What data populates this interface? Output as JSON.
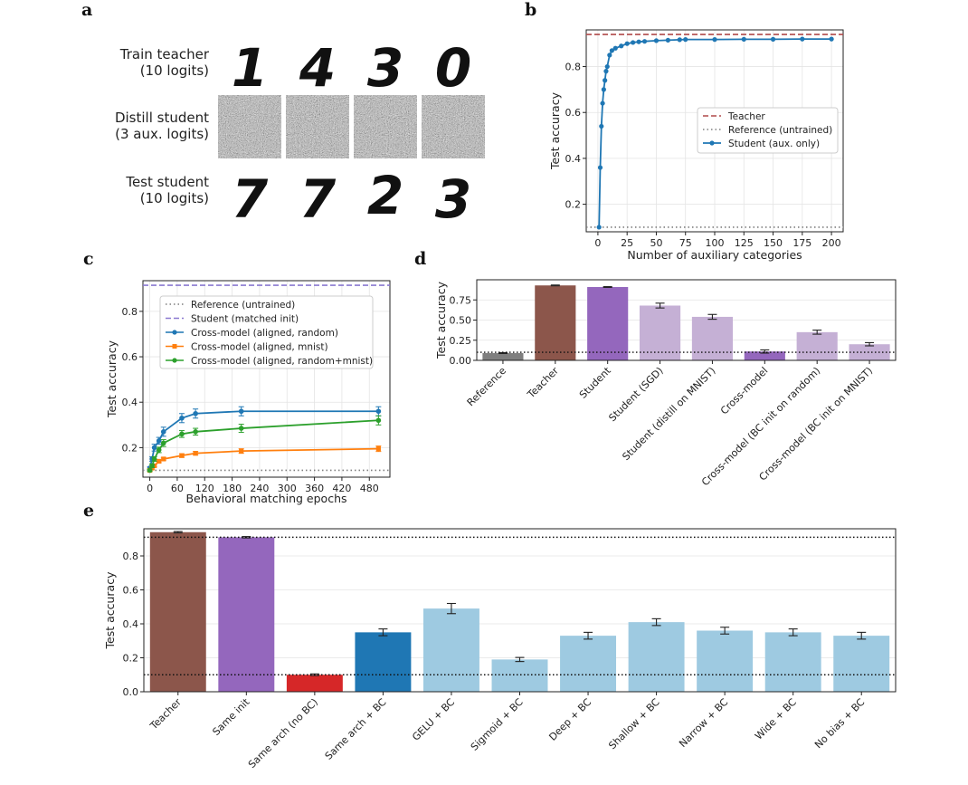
{
  "panel_labels": {
    "a": "a",
    "b": "b",
    "c": "c",
    "d": "d",
    "e": "e"
  },
  "colors": {
    "teacher": "#8c564b",
    "student": "#9467bd",
    "student_light": "#c5b0d5",
    "reference": "#7f7f7f",
    "same_arch_nobc": "#d62728",
    "same_arch_bc": "#1f77b4",
    "variants": "#9ecae1",
    "blue": "#1f77b4",
    "orange": "#ff7f0e",
    "green": "#2ca02c",
    "dashed_purple": "#8a79d0"
  },
  "panel_a": {
    "rows": [
      {
        "label_line1": "Train teacher",
        "label_line2": "(10 logits)",
        "digits": [
          "1",
          "4",
          "3",
          "0"
        ]
      },
      {
        "label_line1": "Distill student",
        "label_line2": "(3 aux. logits)",
        "digits": []
      },
      {
        "label_line1": "Test student",
        "label_line2": "(10 logits)",
        "digits": [
          "7",
          "7",
          "2",
          "3"
        ]
      }
    ]
  },
  "chart_data": [
    {
      "panel": "b",
      "type": "line",
      "xlabel": "Number of auxiliary categories",
      "ylabel": "Test accuracy",
      "xlim": [
        -10,
        210
      ],
      "ylim": [
        0.08,
        0.96
      ],
      "xticks": [
        0,
        25,
        50,
        75,
        100,
        125,
        150,
        175,
        200
      ],
      "yticks": [
        0.2,
        0.4,
        0.6,
        0.8
      ],
      "reference_lines": [
        {
          "name": "Teacher",
          "y": 0.94,
          "style": "dashed",
          "color": "#b04a4a"
        },
        {
          "name": "Reference (untrained)",
          "y": 0.1,
          "style": "dotted",
          "color": "#7f7f7f"
        }
      ],
      "series": [
        {
          "name": "Student (aux. only)",
          "x": [
            1,
            2,
            3,
            4,
            5,
            6,
            7,
            8,
            10,
            12,
            15,
            20,
            25,
            30,
            35,
            40,
            50,
            60,
            70,
            75,
            100,
            125,
            150,
            175,
            200
          ],
          "y": [
            0.1,
            0.36,
            0.54,
            0.64,
            0.7,
            0.74,
            0.78,
            0.8,
            0.85,
            0.87,
            0.88,
            0.89,
            0.9,
            0.905,
            0.908,
            0.91,
            0.913,
            0.915,
            0.917,
            0.918,
            0.918,
            0.919,
            0.919,
            0.92,
            0.92
          ],
          "err": [
            0.005,
            0.02,
            0.02,
            0.02,
            0.015,
            0.012,
            0.01,
            0.01,
            0.008,
            0.006,
            0.005,
            0.004,
            0.004,
            0.003,
            0.003,
            0.003,
            0.003,
            0.003,
            0.003,
            0.003,
            0.003,
            0.003,
            0.003,
            0.003,
            0.003
          ]
        }
      ],
      "legend": {
        "position": "center-right",
        "entries": [
          "Teacher",
          "Reference (untrained)",
          "Student (aux. only)"
        ]
      }
    },
    {
      "panel": "c",
      "type": "line",
      "xlabel": "Behavioral matching epochs",
      "ylabel": "Test accuracy",
      "xlim": [
        -15,
        525
      ],
      "ylim": [
        0.07,
        0.935
      ],
      "xticks": [
        0,
        60,
        120,
        180,
        240,
        300,
        360,
        420,
        480
      ],
      "yticks": [
        0.2,
        0.4,
        0.6,
        0.8
      ],
      "reference_lines": [
        {
          "name": "Reference (untrained)",
          "y": 0.1,
          "style": "dotted",
          "color": "#7f7f7f"
        },
        {
          "name": "Student (matched init)",
          "y": 0.915,
          "style": "dashed",
          "color": "#8a79d0"
        }
      ],
      "series": [
        {
          "name": "Cross-model (aligned, random)",
          "color": "#1f77b4",
          "x": [
            0,
            5,
            10,
            20,
            30,
            70,
            100,
            200,
            500
          ],
          "y": [
            0.11,
            0.15,
            0.2,
            0.23,
            0.27,
            0.33,
            0.35,
            0.36,
            0.36
          ],
          "err": [
            0.005,
            0.01,
            0.015,
            0.015,
            0.02,
            0.02,
            0.02,
            0.02,
            0.02
          ]
        },
        {
          "name": "Cross-model (aligned, mnist)",
          "color": "#ff7f0e",
          "x": [
            0,
            5,
            10,
            20,
            30,
            70,
            100,
            200,
            500
          ],
          "y": [
            0.1,
            0.11,
            0.12,
            0.14,
            0.15,
            0.165,
            0.175,
            0.185,
            0.195
          ],
          "err": [
            0.005,
            0.005,
            0.005,
            0.006,
            0.007,
            0.008,
            0.008,
            0.01,
            0.012
          ]
        },
        {
          "name": "Cross-model (aligned, random+mnist)",
          "color": "#2ca02c",
          "x": [
            0,
            5,
            10,
            20,
            30,
            70,
            100,
            200,
            500
          ],
          "y": [
            0.1,
            0.12,
            0.15,
            0.19,
            0.22,
            0.26,
            0.27,
            0.285,
            0.32
          ],
          "err": [
            0.005,
            0.008,
            0.01,
            0.012,
            0.015,
            0.015,
            0.015,
            0.018,
            0.02
          ]
        }
      ],
      "legend": {
        "position": "top-center",
        "entries": [
          "Reference (untrained)",
          "Student (matched init)",
          "Cross-model (aligned, random)",
          "Cross-model (aligned, mnist)",
          "Cross-model (aligned, random+mnist)"
        ]
      }
    },
    {
      "panel": "d",
      "type": "bar",
      "xlabel": "",
      "ylabel": "Test accuracy",
      "ylim": [
        0,
        1.0
      ],
      "yticks": [
        0.0,
        0.25,
        0.5,
        0.75
      ],
      "ytick_labels": [
        "0.00",
        "0.25",
        "0.50",
        "0.75"
      ],
      "reference_line": {
        "y": 0.1,
        "style": "dotted"
      },
      "categories": [
        "Reference",
        "Teacher",
        "Student",
        "Student (SGD)",
        "Student (distill on MNIST)",
        "Cross-model",
        "Cross-model (BC init on random)",
        "Cross-model (BC init on MNIST)"
      ],
      "values": [
        0.09,
        0.93,
        0.91,
        0.68,
        0.54,
        0.11,
        0.35,
        0.2
      ],
      "errors": [
        0.005,
        0.005,
        0.005,
        0.03,
        0.03,
        0.02,
        0.025,
        0.02
      ],
      "bar_colors": [
        "#7f7f7f",
        "#8c564b",
        "#9467bd",
        "#c5b0d5",
        "#c5b0d5",
        "#9467bd",
        "#c5b0d5",
        "#c5b0d5"
      ]
    },
    {
      "panel": "e",
      "type": "bar",
      "xlabel": "",
      "ylabel": "Test accuracy",
      "ylim": [
        0,
        0.96
      ],
      "yticks": [
        0.0,
        0.2,
        0.4,
        0.6,
        0.8
      ],
      "ytick_labels": [
        "0.0",
        "0.2",
        "0.4",
        "0.6",
        "0.8"
      ],
      "reference_lines": [
        {
          "y": 0.91,
          "style": "dotted"
        },
        {
          "y": 0.1,
          "style": "dotted"
        }
      ],
      "categories": [
        "Teacher",
        "Same init",
        "Same arch (no BC)",
        "Same arch + BC",
        "GELU + BC",
        "Sigmoid + BC",
        "Deep + BC",
        "Shallow + BC",
        "Narrow + BC",
        "Wide + BC",
        "No bias + BC"
      ],
      "values": [
        0.94,
        0.91,
        0.1,
        0.35,
        0.49,
        0.19,
        0.33,
        0.41,
        0.36,
        0.35,
        0.33
      ],
      "errors": [
        0.004,
        0.004,
        0.005,
        0.02,
        0.03,
        0.012,
        0.02,
        0.02,
        0.02,
        0.02,
        0.02
      ],
      "bar_colors": [
        "#8c564b",
        "#9467bd",
        "#d62728",
        "#1f77b4",
        "#9ecae1",
        "#9ecae1",
        "#9ecae1",
        "#9ecae1",
        "#9ecae1",
        "#9ecae1",
        "#9ecae1"
      ]
    }
  ]
}
